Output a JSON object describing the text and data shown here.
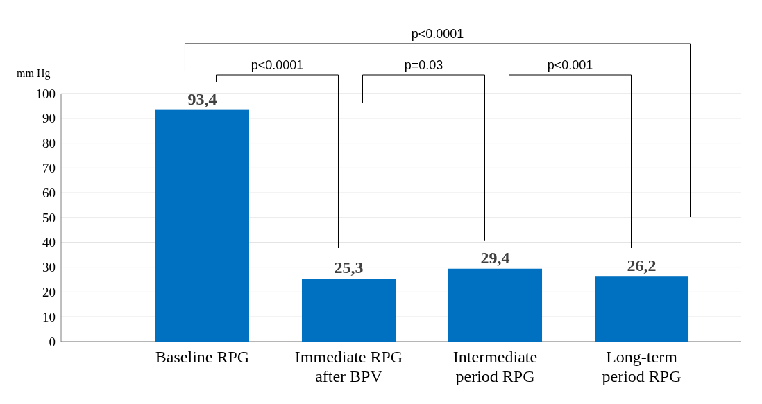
{
  "chart_data": {
    "type": "bar",
    "ylabel": "mm Hg",
    "categories": [
      "Baseline RPG",
      "Immediate RPG after BPV",
      "Intermediate period RPG",
      "Long-term period RPG"
    ],
    "values": [
      93.4,
      25.3,
      29.4,
      26.2
    ],
    "value_labels": [
      "93,4",
      "25,3",
      "29,4",
      "26,2"
    ],
    "color": "#0070c0",
    "ylim": [
      0,
      100
    ],
    "yticks": [
      0,
      10,
      20,
      30,
      40,
      50,
      60,
      70,
      80,
      90,
      100
    ],
    "grid": "y",
    "annotations": [
      "p<0.0001",
      "p<0.0001",
      "p=0.03",
      "p<0.001"
    ]
  }
}
